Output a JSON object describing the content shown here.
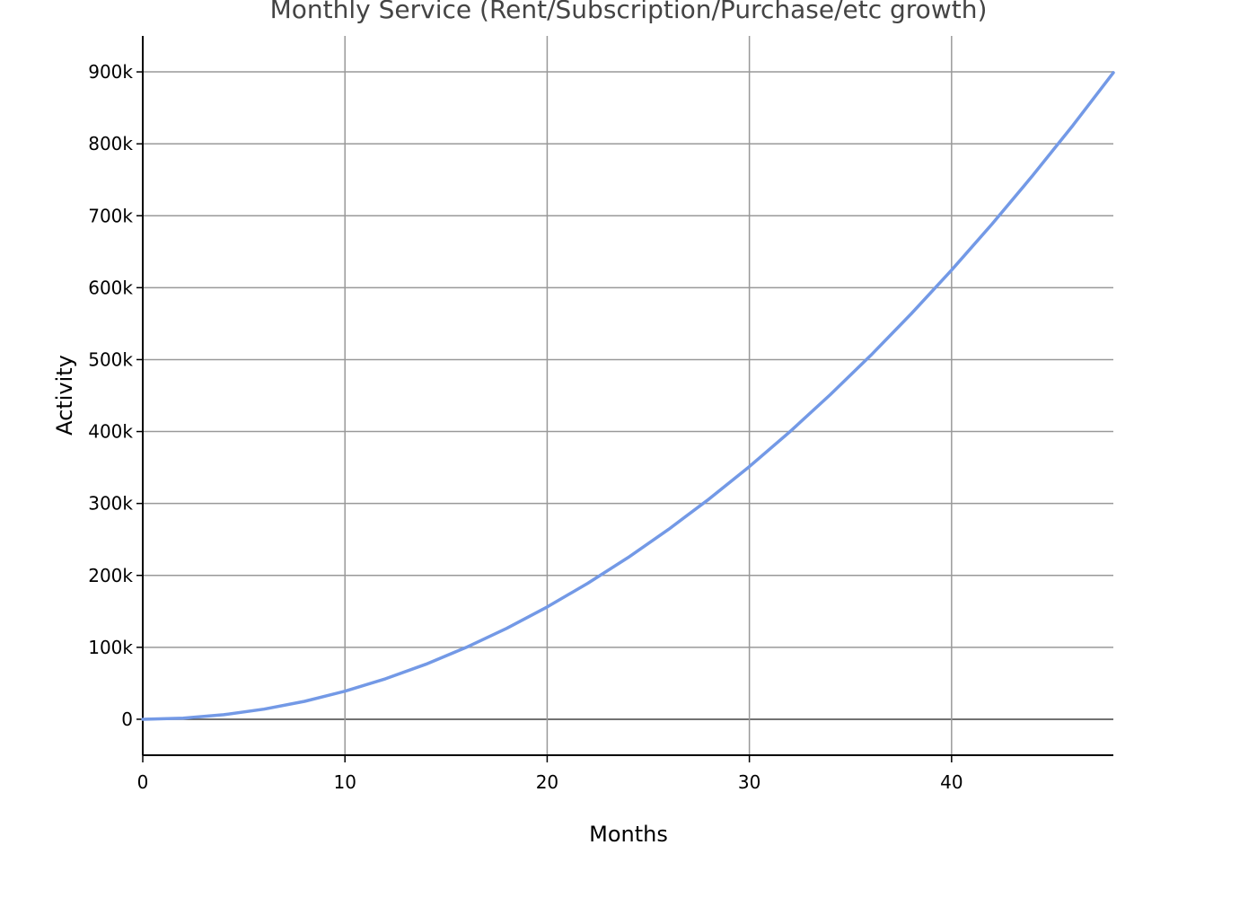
{
  "chart_data": {
    "type": "line",
    "title": "Monthly Service (Rent/Subscription/Purchase/etc growth)",
    "xlabel": "Months",
    "ylabel": "Activity",
    "xlim": [
      0,
      48
    ],
    "ylim": [
      -50000,
      950000
    ],
    "x_ticks": [
      {
        "value": 0,
        "label": "0"
      },
      {
        "value": 10,
        "label": "10"
      },
      {
        "value": 20,
        "label": "20"
      },
      {
        "value": 30,
        "label": "30"
      },
      {
        "value": 40,
        "label": "40"
      }
    ],
    "y_ticks": [
      {
        "value": 0,
        "label": "0"
      },
      {
        "value": 100000,
        "label": "100k"
      },
      {
        "value": 200000,
        "label": "200k"
      },
      {
        "value": 300000,
        "label": "300k"
      },
      {
        "value": 400000,
        "label": "400k"
      },
      {
        "value": 500000,
        "label": "500k"
      },
      {
        "value": 600000,
        "label": "600k"
      },
      {
        "value": 700000,
        "label": "700k"
      },
      {
        "value": 800000,
        "label": "800k"
      },
      {
        "value": 900000,
        "label": "900k"
      }
    ],
    "grid": true,
    "colors": {
      "line": "#7399e6",
      "grid": "#999999",
      "zero_line": "#444444",
      "axis": "#000000",
      "title": "#444444"
    },
    "series": [
      {
        "x": [
          0,
          2,
          4,
          6,
          8,
          10,
          12,
          14,
          16,
          18,
          20,
          22,
          24,
          26,
          28,
          30,
          32,
          34,
          36,
          38,
          40,
          42,
          44,
          46,
          48
        ],
        "values": [
          0,
          1500,
          6250,
          14000,
          24900,
          39000,
          56200,
          76500,
          99900,
          126400,
          156100,
          188900,
          224800,
          263800,
          306000,
          351300,
          399700,
          451200,
          505800,
          563600,
          624400,
          688400,
          755500,
          825700,
          899000
        ]
      }
    ]
  }
}
